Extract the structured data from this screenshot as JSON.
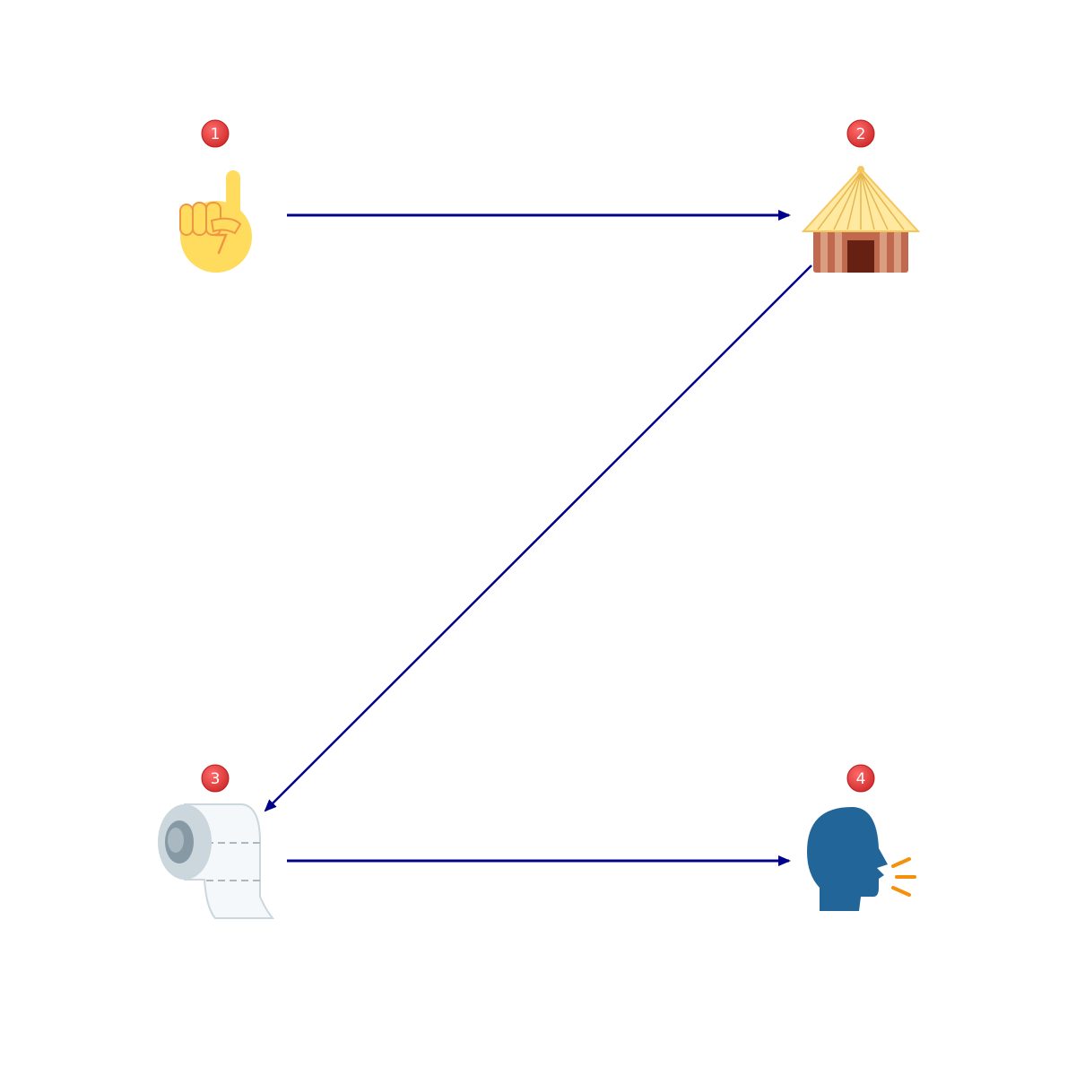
{
  "colors": {
    "arrow": "#00008b",
    "badge": "#e53935",
    "badge_stroke": "#b71c1c"
  },
  "nodes": [
    {
      "id": "n1",
      "badge": "1",
      "icon": "index-pointing-up-icon"
    },
    {
      "id": "n2",
      "badge": "2",
      "icon": "hut-icon"
    },
    {
      "id": "n3",
      "badge": "3",
      "icon": "toilet-paper-roll-icon"
    },
    {
      "id": "n4",
      "badge": "4",
      "icon": "speaking-head-icon"
    }
  ],
  "edges": [
    {
      "from": "1",
      "to": "2"
    },
    {
      "from": "2",
      "to": "3"
    },
    {
      "from": "3",
      "to": "4"
    }
  ]
}
